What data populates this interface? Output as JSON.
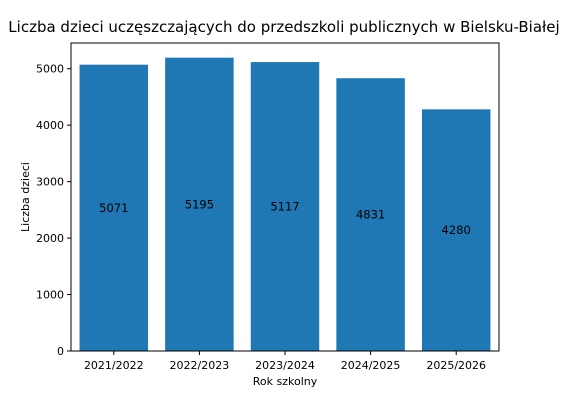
{
  "chart_data": {
    "type": "bar",
    "title": "Liczba dzieci uczęszczających do przedszkoli publicznych w Bielsku-Białej",
    "xlabel": "Rok szkolny",
    "ylabel": "Liczba dzieci",
    "categories": [
      "2021/2022",
      "2022/2023",
      "2023/2024",
      "2024/2025",
      "2025/2026"
    ],
    "values": [
      5071,
      5195,
      5117,
      4831,
      4280
    ],
    "ylim": [
      0,
      5455
    ],
    "yticks": [
      0,
      1000,
      2000,
      3000,
      4000,
      5000
    ],
    "bar_color": "#1f77b4",
    "data_labels_position": "middle",
    "grid": false,
    "legend": false
  }
}
